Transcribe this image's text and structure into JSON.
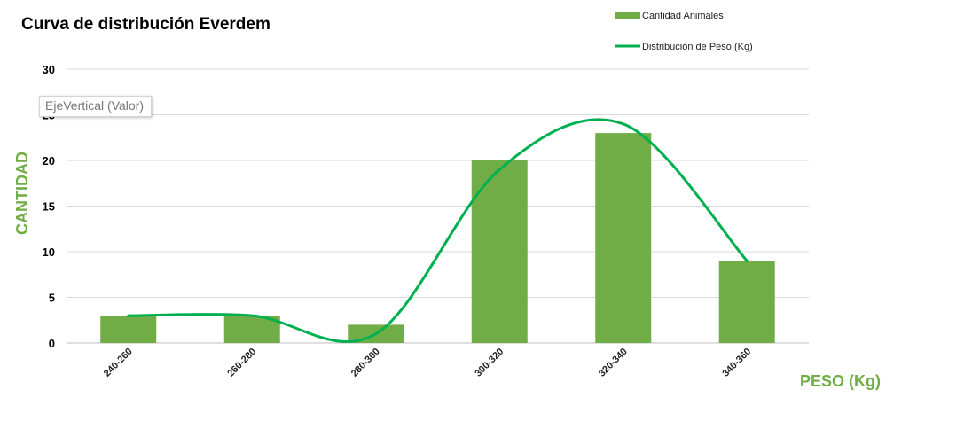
{
  "chart_data": {
    "type": "bar",
    "title": "Curva de distribución Everdem",
    "xlabel": "PESO (Kg)",
    "ylabel": "CANTIDAD",
    "categories": [
      "240-260",
      "260-280",
      "280-300",
      "300-320",
      "320-340",
      "340-360"
    ],
    "ylim": [
      0,
      30
    ],
    "yticks": [
      0,
      5,
      10,
      15,
      20,
      25,
      30
    ],
    "grid": true,
    "legend_position": "top-right",
    "series": [
      {
        "name": "Cantidad Animales",
        "type": "bar",
        "color": "#70AD47",
        "values": [
          3,
          3,
          2,
          20,
          23,
          9
        ]
      },
      {
        "name": "Distribución de Peso (Kg)",
        "type": "line",
        "smooth": true,
        "color": "#00B050",
        "values": [
          3,
          3,
          1,
          19,
          24,
          9
        ]
      }
    ]
  },
  "tooltip": {
    "text": "EjeVertical (Valor)"
  }
}
